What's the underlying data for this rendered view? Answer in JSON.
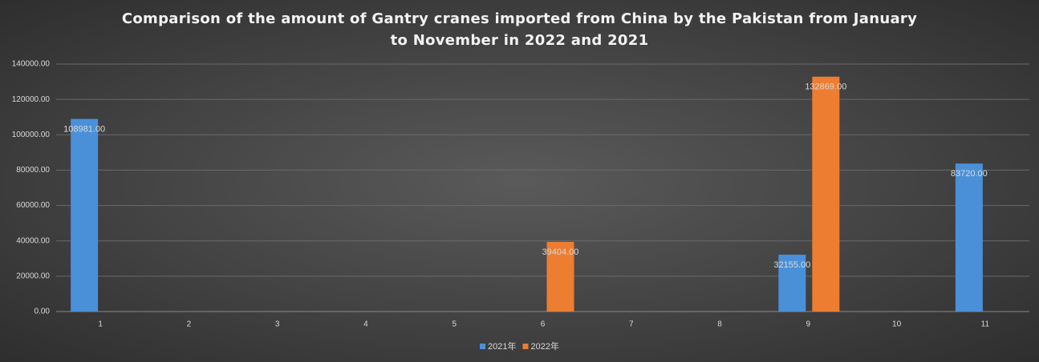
{
  "chart_data": {
    "type": "bar",
    "title": "Comparison of the amount of Gantry cranes imported from China by the Pakistan from January to November in 2022 and 2021",
    "categories": [
      "1",
      "2",
      "3",
      "4",
      "5",
      "6",
      "7",
      "8",
      "9",
      "10",
      "11"
    ],
    "series": [
      {
        "name": "2021年",
        "color": "#4a90d9",
        "values": [
          108981,
          null,
          null,
          null,
          null,
          null,
          null,
          null,
          32155,
          null,
          83720
        ],
        "value_labels": [
          "108981.00",
          null,
          null,
          null,
          null,
          null,
          null,
          null,
          "32155.00",
          null,
          "83720.00"
        ]
      },
      {
        "name": "2022年",
        "color": "#ed7d31",
        "values": [
          null,
          null,
          null,
          null,
          null,
          39404,
          null,
          null,
          132869,
          null,
          null
        ],
        "value_labels": [
          null,
          null,
          null,
          null,
          null,
          "39404.00",
          null,
          null,
          "132869.00",
          null,
          null
        ]
      }
    ],
    "ylim": [
      0,
      140000
    ],
    "yticks": [
      {
        "value": 0,
        "label": "0.00"
      },
      {
        "value": 20000,
        "label": "20000.00"
      },
      {
        "value": 40000,
        "label": "40000.00"
      },
      {
        "value": 60000,
        "label": "60000.00"
      },
      {
        "value": 80000,
        "label": "80000.00"
      },
      {
        "value": 100000,
        "label": "100000.00"
      },
      {
        "value": 120000,
        "label": "120000.00"
      },
      {
        "value": 140000,
        "label": "140000.00"
      }
    ],
    "grid": true,
    "legend": "bottom"
  }
}
